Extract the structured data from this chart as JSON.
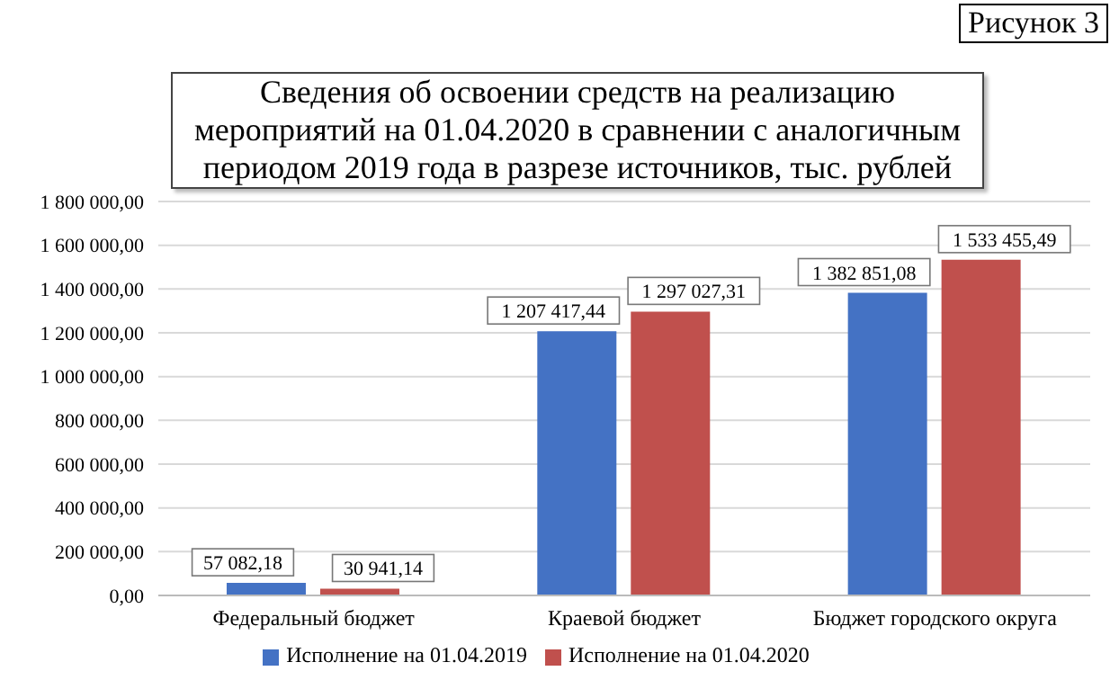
{
  "chart_data": {
    "type": "bar",
    "title": "Сведения об освоении средств на реализацию мероприятий на 01.04.2020 в сравнении с аналогичным периодом 2019 года в разрезе источников, тыс. рублей",
    "annotations": [
      "Рисунок 3"
    ],
    "categories": [
      "Федеральный бюджет",
      "Краевой бюджет",
      "Бюджет городского округа"
    ],
    "series": [
      {
        "name": "Исполнение на 01.04.2019",
        "color": "#4472c4",
        "values": [
          57082.18,
          1207417.44,
          1382851.08
        ],
        "value_labels": [
          "57 082,18",
          "1 207 417,44",
          "1 382 851,08"
        ]
      },
      {
        "name": "Исполнение на 01.04.2020",
        "color": "#c0504d",
        "values": [
          30941.14,
          1297027.31,
          1533455.49
        ],
        "value_labels": [
          "30 941,14",
          "1 297 027,31",
          "1 533 455,49"
        ]
      }
    ],
    "ylim": [
      0,
      1800000
    ],
    "yticks": [
      {
        "value": 0,
        "label": "0,00"
      },
      {
        "value": 200000,
        "label": "200 000,00"
      },
      {
        "value": 400000,
        "label": "400 000,00"
      },
      {
        "value": 600000,
        "label": "600 000,00"
      },
      {
        "value": 800000,
        "label": "800 000,00"
      },
      {
        "value": 1000000,
        "label": "1 000 000,00"
      },
      {
        "value": 1200000,
        "label": "1 200 000,00"
      },
      {
        "value": 1400000,
        "label": "1 400 000,00"
      },
      {
        "value": 1600000,
        "label": "1 600 000,00"
      },
      {
        "value": 1800000,
        "label": "1 800 000,00"
      }
    ],
    "grid": "y",
    "legend": "bottom"
  }
}
